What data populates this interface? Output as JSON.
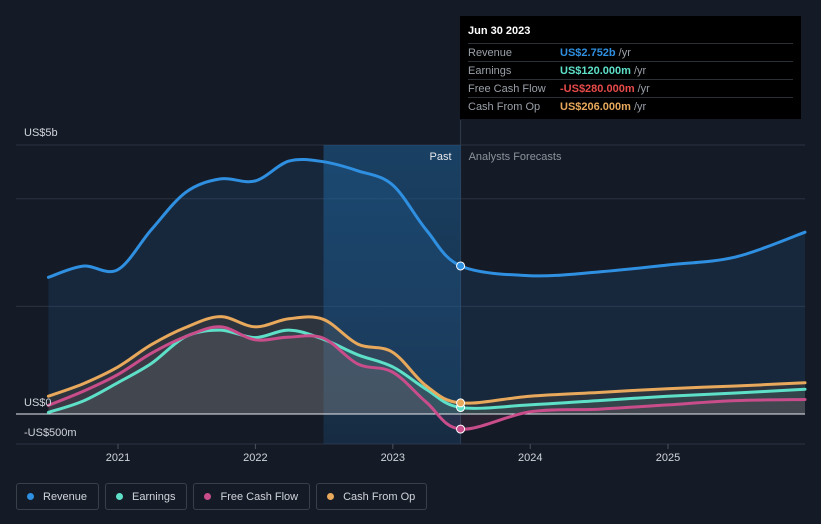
{
  "chart_data": {
    "type": "line",
    "title": "",
    "y_unit_labels": {
      "top": "US$5b",
      "zero": "US$0",
      "bottom": "-US$500m"
    },
    "ylim": [
      -500,
      5000
    ],
    "xlim": [
      "2020-06-30",
      "2025-12-31"
    ],
    "x_tick_labels": [
      "2021",
      "2022",
      "2023",
      "2024",
      "2025"
    ],
    "x_ticks": [
      "2021-01-01",
      "2022-01-01",
      "2023-01-01",
      "2024-01-01",
      "2025-01-01"
    ],
    "past_label": "Past",
    "forecast_label": "Analysts Forecasts",
    "past_region_start": "2022-07-01",
    "past_region_end": "2023-06-30",
    "grid": true,
    "series": [
      {
        "name": "Revenue",
        "color": "#2f8fe0",
        "points": [
          [
            "2020-06-30",
            2540
          ],
          [
            "2020-09-30",
            2750
          ],
          [
            "2020-12-31",
            2680
          ],
          [
            "2021-03-31",
            3430
          ],
          [
            "2021-06-30",
            4120
          ],
          [
            "2021-09-30",
            4370
          ],
          [
            "2021-12-31",
            4330
          ],
          [
            "2022-03-31",
            4700
          ],
          [
            "2022-06-30",
            4690
          ],
          [
            "2022-09-30",
            4520
          ],
          [
            "2022-12-31",
            4260
          ],
          [
            "2023-03-31",
            3420
          ],
          [
            "2023-06-30",
            2752
          ],
          [
            "2023-12-31",
            2570
          ],
          [
            "2024-06-30",
            2640
          ],
          [
            "2024-12-31",
            2770
          ],
          [
            "2025-06-30",
            2920
          ],
          [
            "2025-12-31",
            3380
          ]
        ]
      },
      {
        "name": "Earnings",
        "color": "#5ee0c8",
        "points": [
          [
            "2020-06-30",
            30
          ],
          [
            "2020-09-30",
            240
          ],
          [
            "2020-12-31",
            580
          ],
          [
            "2021-03-31",
            940
          ],
          [
            "2021-06-30",
            1440
          ],
          [
            "2021-09-30",
            1560
          ],
          [
            "2021-12-31",
            1420
          ],
          [
            "2022-03-31",
            1560
          ],
          [
            "2022-06-30",
            1390
          ],
          [
            "2022-09-30",
            1100
          ],
          [
            "2022-12-31",
            880
          ],
          [
            "2023-03-31",
            460
          ],
          [
            "2023-06-30",
            120
          ],
          [
            "2023-12-31",
            170
          ],
          [
            "2024-06-30",
            250
          ],
          [
            "2024-12-31",
            330
          ],
          [
            "2025-06-30",
            390
          ],
          [
            "2025-12-31",
            460
          ]
        ]
      },
      {
        "name": "Free Cash Flow",
        "color": "#c84d8a",
        "points": [
          [
            "2020-06-30",
            160
          ],
          [
            "2020-09-30",
            420
          ],
          [
            "2020-12-31",
            730
          ],
          [
            "2021-03-31",
            1130
          ],
          [
            "2021-06-30",
            1440
          ],
          [
            "2021-09-30",
            1620
          ],
          [
            "2021-12-31",
            1380
          ],
          [
            "2022-03-31",
            1430
          ],
          [
            "2022-06-30",
            1410
          ],
          [
            "2022-09-30",
            930
          ],
          [
            "2022-12-31",
            780
          ],
          [
            "2023-03-31",
            220
          ],
          [
            "2023-06-30",
            -280
          ],
          [
            "2023-12-31",
            40
          ],
          [
            "2024-06-30",
            90
          ],
          [
            "2024-12-31",
            170
          ],
          [
            "2025-06-30",
            250
          ],
          [
            "2025-12-31",
            270
          ]
        ]
      },
      {
        "name": "Cash From Op",
        "color": "#e8a95c",
        "points": [
          [
            "2020-06-30",
            330
          ],
          [
            "2020-09-30",
            560
          ],
          [
            "2020-12-31",
            870
          ],
          [
            "2021-03-31",
            1290
          ],
          [
            "2021-06-30",
            1610
          ],
          [
            "2021-09-30",
            1810
          ],
          [
            "2021-12-31",
            1620
          ],
          [
            "2022-03-31",
            1770
          ],
          [
            "2022-06-30",
            1760
          ],
          [
            "2022-09-30",
            1300
          ],
          [
            "2022-12-31",
            1150
          ],
          [
            "2023-03-31",
            520
          ],
          [
            "2023-06-30",
            206
          ],
          [
            "2023-12-31",
            330
          ],
          [
            "2024-06-30",
            400
          ],
          [
            "2024-12-31",
            470
          ],
          [
            "2025-06-30",
            520
          ],
          [
            "2025-12-31",
            580
          ]
        ]
      }
    ]
  },
  "tooltip": {
    "date": "Jun 30 2023",
    "rows": [
      {
        "label": "Revenue",
        "value": "US$2.752b",
        "unit": "/yr",
        "color": "#2f8fe0"
      },
      {
        "label": "Earnings",
        "value": "US$120.000m",
        "unit": "/yr",
        "color": "#5ee0c8"
      },
      {
        "label": "Free Cash Flow",
        "value": "-US$280.000m",
        "unit": "/yr",
        "color": "#e84a4a"
      },
      {
        "label": "Cash From Op",
        "value": "US$206.000m",
        "unit": "/yr",
        "color": "#e8a95c"
      }
    ]
  },
  "legend": [
    {
      "label": "Revenue",
      "color": "#2f8fe0"
    },
    {
      "label": "Earnings",
      "color": "#5ee0c8"
    },
    {
      "label": "Free Cash Flow",
      "color": "#c84d8a"
    },
    {
      "label": "Cash From Op",
      "color": "#e8a95c"
    }
  ]
}
